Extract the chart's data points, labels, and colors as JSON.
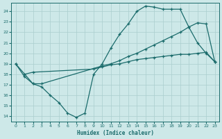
{
  "xlabel": "Humidex (Indice chaleur)",
  "ylabel": "",
  "xlim": [
    -0.5,
    23.5
  ],
  "ylim": [
    13.5,
    24.8
  ],
  "yticks": [
    14,
    15,
    16,
    17,
    18,
    19,
    20,
    21,
    22,
    23,
    24
  ],
  "xticks": [
    0,
    1,
    2,
    3,
    4,
    5,
    6,
    7,
    8,
    9,
    10,
    11,
    12,
    13,
    14,
    15,
    16,
    17,
    18,
    19,
    20,
    21,
    22,
    23
  ],
  "bg_color": "#cde8e8",
  "grid_color": "#aacece",
  "line_color": "#1a6b6b",
  "line1_x": [
    0,
    1,
    2,
    3,
    4,
    5,
    6,
    7,
    8,
    9,
    10,
    11,
    12,
    13,
    14,
    15,
    16,
    17,
    18,
    19,
    20,
    21,
    22,
    23
  ],
  "line1_y": [
    19.0,
    17.8,
    17.1,
    16.8,
    16.0,
    15.3,
    14.3,
    13.9,
    14.3,
    18.0,
    19.0,
    20.5,
    21.8,
    22.8,
    24.0,
    24.5,
    24.4,
    24.2,
    24.2,
    24.2,
    22.5,
    21.0,
    20.0,
    19.2
  ],
  "line2_x": [
    0,
    2,
    3,
    10,
    11,
    12,
    13,
    14,
    15,
    16,
    17,
    18,
    19,
    20,
    21,
    22,
    23
  ],
  "line2_y": [
    19.0,
    17.1,
    17.1,
    18.8,
    19.0,
    19.3,
    19.7,
    20.0,
    20.4,
    20.8,
    21.2,
    21.6,
    22.0,
    22.5,
    22.9,
    22.8,
    19.2
  ],
  "line3_x": [
    1,
    2,
    9,
    10,
    11,
    12,
    13,
    14,
    15,
    16,
    17,
    18,
    19,
    20,
    21,
    22,
    23
  ],
  "line3_y": [
    18.0,
    18.2,
    18.5,
    18.7,
    18.9,
    19.0,
    19.2,
    19.4,
    19.5,
    19.6,
    19.7,
    19.8,
    19.9,
    19.9,
    20.0,
    20.1,
    19.2
  ]
}
